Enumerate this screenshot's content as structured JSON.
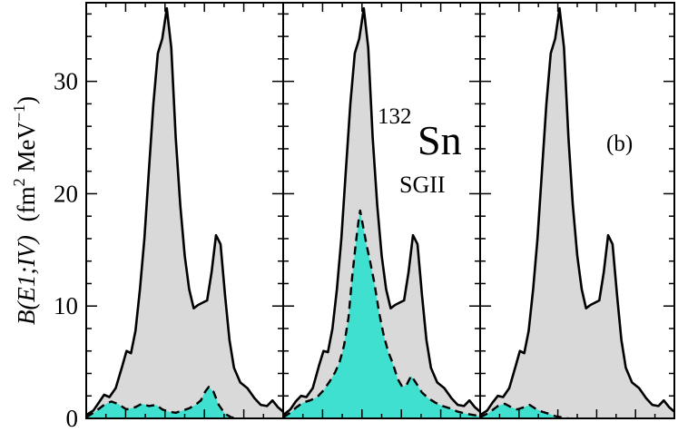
{
  "chart_data": {
    "type": "area",
    "ylabel": {
      "main": "B(E1;IV)",
      "units": "(fm",
      "sup2": "2",
      "mev": " MeV",
      "supneg": "−1",
      "close": ")"
    },
    "ylim": [
      0,
      37
    ],
    "yticks": [
      0,
      10,
      20,
      30
    ],
    "grid": false,
    "annotations": {
      "mass": "132",
      "element": "Sn",
      "force": "SGII",
      "panel": "(b)"
    },
    "colors": {
      "total_fill": "#d9d9d9",
      "component_fill": "#40e0d0",
      "line": "#000000"
    },
    "panels": [
      {
        "name": "left",
        "total": [
          [
            0,
            0.3
          ],
          [
            0.08,
            0.7
          ],
          [
            0.14,
            1.4
          ],
          [
            0.2,
            2.1
          ],
          [
            0.26,
            1.9
          ],
          [
            0.33,
            2.7
          ],
          [
            0.4,
            4.6
          ],
          [
            0.45,
            6.0
          ],
          [
            0.5,
            5.8
          ],
          [
            0.55,
            7.8
          ],
          [
            0.6,
            11.5
          ],
          [
            0.65,
            16
          ],
          [
            0.7,
            22
          ],
          [
            0.75,
            28
          ],
          [
            0.8,
            32.5
          ],
          [
            0.85,
            33.8
          ],
          [
            0.9,
            36.5
          ],
          [
            0.95,
            33
          ],
          [
            1.0,
            25
          ],
          [
            1.05,
            19
          ],
          [
            1.1,
            14.5
          ],
          [
            1.15,
            11.5
          ],
          [
            1.2,
            9.8
          ],
          [
            1.25,
            10.1
          ],
          [
            1.3,
            10.3
          ],
          [
            1.35,
            10.5
          ],
          [
            1.4,
            13
          ],
          [
            1.45,
            16.3
          ],
          [
            1.5,
            15.5
          ],
          [
            1.55,
            11
          ],
          [
            1.6,
            7
          ],
          [
            1.65,
            4.5
          ],
          [
            1.72,
            3.2
          ],
          [
            1.8,
            2.7
          ],
          [
            1.88,
            1.8
          ],
          [
            1.95,
            1.2
          ],
          [
            2.02,
            1.1
          ],
          [
            2.08,
            1.6
          ],
          [
            2.14,
            1.0
          ],
          [
            2.2,
            0.6
          ]
        ],
        "component": [
          [
            0,
            0.1
          ],
          [
            0.1,
            0.6
          ],
          [
            0.2,
            1.2
          ],
          [
            0.28,
            1.5
          ],
          [
            0.35,
            1.3
          ],
          [
            0.45,
            0.8
          ],
          [
            0.55,
            1.0
          ],
          [
            0.62,
            1.3
          ],
          [
            0.7,
            1.1
          ],
          [
            0.78,
            1.2
          ],
          [
            0.85,
            0.8
          ],
          [
            0.92,
            0.6
          ],
          [
            1.0,
            0.5
          ],
          [
            1.08,
            0.7
          ],
          [
            1.15,
            0.9
          ],
          [
            1.22,
            1.2
          ],
          [
            1.28,
            1.6
          ],
          [
            1.33,
            2.4
          ],
          [
            1.37,
            2.8
          ],
          [
            1.42,
            2.4
          ],
          [
            1.48,
            1.2
          ],
          [
            1.55,
            0.4
          ],
          [
            1.62,
            0.1
          ],
          [
            1.7,
            0.0
          ]
        ]
      },
      {
        "name": "middle",
        "total": [
          [
            0,
            0.3
          ],
          [
            0.08,
            0.8
          ],
          [
            0.14,
            1.5
          ],
          [
            0.2,
            2.0
          ],
          [
            0.26,
            1.9
          ],
          [
            0.33,
            2.7
          ],
          [
            0.4,
            4.7
          ],
          [
            0.45,
            6.0
          ],
          [
            0.5,
            5.9
          ],
          [
            0.55,
            8
          ],
          [
            0.6,
            11.5
          ],
          [
            0.65,
            16
          ],
          [
            0.7,
            22
          ],
          [
            0.75,
            28
          ],
          [
            0.8,
            32.5
          ],
          [
            0.85,
            33.8
          ],
          [
            0.9,
            36.5
          ],
          [
            0.95,
            33
          ],
          [
            1.0,
            25
          ],
          [
            1.05,
            19
          ],
          [
            1.1,
            14.5
          ],
          [
            1.15,
            11.5
          ],
          [
            1.2,
            9.8
          ],
          [
            1.25,
            10.1
          ],
          [
            1.3,
            10.3
          ],
          [
            1.35,
            10.5
          ],
          [
            1.4,
            13
          ],
          [
            1.45,
            16.3
          ],
          [
            1.5,
            15.5
          ],
          [
            1.55,
            11
          ],
          [
            1.6,
            7
          ],
          [
            1.65,
            4.5
          ],
          [
            1.72,
            3.2
          ],
          [
            1.8,
            2.7
          ],
          [
            1.88,
            1.8
          ],
          [
            1.95,
            1.2
          ],
          [
            2.02,
            1.1
          ],
          [
            2.08,
            1.6
          ],
          [
            2.14,
            1.0
          ],
          [
            2.2,
            0.6
          ]
        ],
        "component": [
          [
            0,
            0.1
          ],
          [
            0.08,
            0.5
          ],
          [
            0.15,
            1.0
          ],
          [
            0.22,
            1.4
          ],
          [
            0.3,
            1.6
          ],
          [
            0.38,
            1.9
          ],
          [
            0.45,
            2.5
          ],
          [
            0.52,
            3.3
          ],
          [
            0.58,
            4.1
          ],
          [
            0.63,
            5.0
          ],
          [
            0.68,
            6.5
          ],
          [
            0.73,
            9
          ],
          [
            0.77,
            12.5
          ],
          [
            0.81,
            15.5
          ],
          [
            0.84,
            17.5
          ],
          [
            0.86,
            18.5
          ],
          [
            0.89,
            17.2
          ],
          [
            0.93,
            15.5
          ],
          [
            0.97,
            14
          ],
          [
            1.02,
            12
          ],
          [
            1.07,
            9.5
          ],
          [
            1.12,
            7.5
          ],
          [
            1.17,
            6.0
          ],
          [
            1.22,
            5.0
          ],
          [
            1.28,
            3.5
          ],
          [
            1.33,
            2.8
          ],
          [
            1.38,
            3.0
          ],
          [
            1.43,
            3.8
          ],
          [
            1.48,
            3.2
          ],
          [
            1.55,
            2.3
          ],
          [
            1.62,
            1.8
          ],
          [
            1.7,
            1.4
          ],
          [
            1.78,
            1.1
          ],
          [
            1.86,
            0.9
          ],
          [
            1.95,
            0.6
          ],
          [
            2.05,
            0.4
          ],
          [
            2.2,
            0.2
          ]
        ]
      },
      {
        "name": "right",
        "total": [
          [
            0,
            0.3
          ],
          [
            0.08,
            0.7
          ],
          [
            0.14,
            1.4
          ],
          [
            0.2,
            2.0
          ],
          [
            0.26,
            1.9
          ],
          [
            0.33,
            2.7
          ],
          [
            0.4,
            4.6
          ],
          [
            0.45,
            6.0
          ],
          [
            0.5,
            5.8
          ],
          [
            0.55,
            7.8
          ],
          [
            0.6,
            11.5
          ],
          [
            0.65,
            16
          ],
          [
            0.7,
            22
          ],
          [
            0.75,
            28
          ],
          [
            0.8,
            32.5
          ],
          [
            0.85,
            33.8
          ],
          [
            0.9,
            36.5
          ],
          [
            0.95,
            33
          ],
          [
            1.0,
            25
          ],
          [
            1.05,
            19
          ],
          [
            1.1,
            14.5
          ],
          [
            1.15,
            11.5
          ],
          [
            1.2,
            9.8
          ],
          [
            1.25,
            10.1
          ],
          [
            1.3,
            10.3
          ],
          [
            1.35,
            10.5
          ],
          [
            1.4,
            13
          ],
          [
            1.45,
            16.3
          ],
          [
            1.5,
            15.5
          ],
          [
            1.55,
            11
          ],
          [
            1.6,
            7
          ],
          [
            1.65,
            4.5
          ],
          [
            1.72,
            3.2
          ],
          [
            1.8,
            2.7
          ],
          [
            1.88,
            1.8
          ],
          [
            1.95,
            1.2
          ],
          [
            2.02,
            1.1
          ],
          [
            2.08,
            1.6
          ],
          [
            2.14,
            1.0
          ],
          [
            2.2,
            0.6
          ]
        ],
        "component": [
          [
            0,
            0.1
          ],
          [
            0.1,
            0.5
          ],
          [
            0.2,
            1.1
          ],
          [
            0.28,
            1.3
          ],
          [
            0.35,
            1.0
          ],
          [
            0.42,
            0.8
          ],
          [
            0.5,
            1.0
          ],
          [
            0.56,
            1.2
          ],
          [
            0.62,
            0.9
          ],
          [
            0.7,
            0.6
          ],
          [
            0.78,
            0.4
          ],
          [
            0.85,
            0.2
          ],
          [
            0.92,
            0.1
          ],
          [
            1.0,
            0.0
          ]
        ]
      }
    ]
  }
}
